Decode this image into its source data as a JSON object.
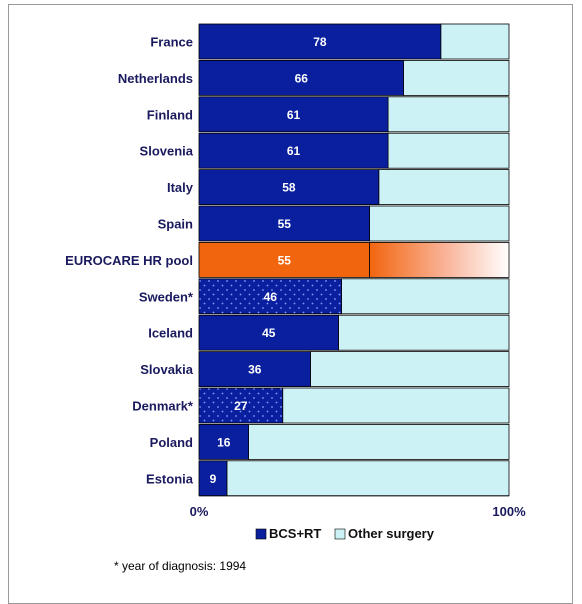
{
  "chart_data": {
    "type": "bar",
    "orientation": "horizontal",
    "stacked": true,
    "normalized": "percent",
    "categories": [
      "France",
      "Netherlands",
      "Finland",
      "Slovenia",
      "Italy",
      "Spain",
      "EUROCARE HR pool",
      "Sweden*",
      "Iceland",
      "Slovakia",
      "Denmark*",
      "Poland",
      "Estonia"
    ],
    "series": [
      {
        "name": "BCS+RT",
        "values": [
          78,
          66,
          61,
          61,
          58,
          55,
          55,
          46,
          45,
          36,
          27,
          16,
          9
        ],
        "color": "#0a1f9e"
      },
      {
        "name": "Other surgery",
        "values": [
          22,
          34,
          39,
          39,
          42,
          45,
          45,
          54,
          55,
          64,
          73,
          84,
          91
        ],
        "color": "#cdf2f6"
      }
    ],
    "highlight": {
      "category": "EUROCARE HR pool",
      "color": "#f2650f"
    },
    "dotted_categories": [
      "Sweden*",
      "Denmark*"
    ],
    "x_ticks": [
      "0%",
      "100%"
    ],
    "xlim": [
      0,
      100
    ],
    "legend_position": "bottom-right",
    "footnote": "* year of diagnosis: 1994"
  }
}
